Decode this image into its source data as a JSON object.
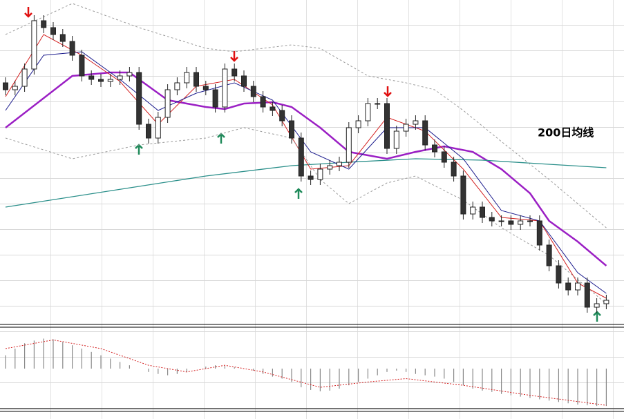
{
  "chart_data": [
    {
      "type": "candlestick",
      "annotation": "200日均线",
      "ylim": [
        0,
        470
      ],
      "up_color": "#ffffff",
      "down_color": "#333333",
      "open": [
        350,
        340,
        345,
        370,
        440,
        430,
        420,
        410,
        390,
        360,
        355,
        352,
        355,
        360,
        365,
        290,
        270,
        300,
        340,
        350,
        365,
        345,
        340,
        315,
        370,
        360,
        345,
        330,
        315,
        310,
        295,
        270,
        215,
        210,
        225,
        230,
        235,
        285,
        295,
        320,
        320,
        255,
        280,
        290,
        295,
        260,
        250,
        235,
        215,
        160,
        170,
        155,
        150,
        150,
        145,
        150,
        150,
        115,
        85,
        60,
        50,
        60,
        25,
        30
      ],
      "high": [
        358,
        353,
        378,
        448,
        448,
        438,
        428,
        418,
        398,
        368,
        363,
        363,
        368,
        373,
        373,
        298,
        308,
        348,
        358,
        373,
        373,
        353,
        348,
        378,
        378,
        368,
        353,
        338,
        323,
        318,
        303,
        278,
        223,
        233,
        238,
        243,
        293,
        303,
        328,
        328,
        328,
        288,
        298,
        303,
        303,
        268,
        258,
        243,
        223,
        178,
        178,
        163,
        158,
        158,
        158,
        158,
        158,
        123,
        93,
        68,
        68,
        68,
        38,
        43
      ],
      "low": [
        332,
        332,
        337,
        362,
        422,
        412,
        402,
        382,
        352,
        347,
        344,
        344,
        347,
        352,
        282,
        262,
        262,
        292,
        332,
        342,
        337,
        332,
        307,
        307,
        352,
        337,
        322,
        307,
        302,
        287,
        262,
        207,
        202,
        202,
        217,
        222,
        227,
        277,
        287,
        312,
        247,
        247,
        272,
        282,
        252,
        242,
        227,
        207,
        152,
        152,
        147,
        142,
        142,
        137,
        137,
        142,
        107,
        77,
        52,
        42,
        42,
        17,
        17,
        22
      ],
      "close": [
        340,
        345,
        370,
        440,
        430,
        420,
        410,
        390,
        360,
        355,
        352,
        355,
        360,
        365,
        290,
        270,
        300,
        340,
        350,
        365,
        345,
        340,
        315,
        370,
        360,
        345,
        330,
        315,
        310,
        295,
        270,
        215,
        210,
        225,
        230,
        235,
        285,
        295,
        320,
        320,
        255,
        280,
        290,
        295,
        260,
        250,
        235,
        215,
        160,
        170,
        155,
        150,
        150,
        145,
        150,
        150,
        115,
        85,
        60,
        50,
        60,
        25,
        30,
        35
      ],
      "lines": [
        {
          "color": "#9b1fc4",
          "width": 2.5,
          "x": [
            0,
            7,
            11,
            13,
            17,
            21,
            23,
            25,
            28,
            30,
            33,
            36,
            40,
            43,
            46,
            49,
            52,
            55,
            57,
            60,
            63
          ],
          "values": [
            285,
            360,
            365,
            365,
            325,
            315,
            312,
            320,
            322,
            315,
            285,
            250,
            240,
            250,
            258,
            250,
            225,
            190,
            150,
            120,
            85
          ]
        },
        {
          "color": "#2a8f8a",
          "width": 1.3,
          "x": [
            0,
            14,
            21,
            30,
            36,
            43,
            50,
            57,
            63
          ],
          "values": [
            170,
            200,
            215,
            230,
            235,
            240,
            238,
            232,
            227
          ]
        },
        {
          "color": "#d42020",
          "width": 1,
          "x": [
            0,
            4,
            8,
            12,
            16,
            20,
            24,
            28,
            32,
            36,
            40,
            44,
            48,
            52,
            56,
            60,
            63
          ],
          "values": [
            330,
            420,
            390,
            352,
            290,
            345,
            355,
            318,
            225,
            230,
            300,
            280,
            225,
            155,
            150,
            60,
            38
          ]
        },
        {
          "color": "#1a1a8c",
          "width": 1,
          "x": [
            0,
            4,
            8,
            12,
            16,
            20,
            24,
            28,
            32,
            36,
            40,
            44,
            48,
            52,
            56,
            60,
            63
          ],
          "values": [
            310,
            390,
            395,
            355,
            310,
            335,
            350,
            325,
            250,
            225,
            285,
            285,
            240,
            165,
            150,
            75,
            45
          ]
        },
        {
          "color": "#999999",
          "width": 1,
          "dash": "3 3",
          "x": [
            0,
            7,
            14,
            21,
            24,
            30,
            33,
            38,
            42,
            45,
            48,
            52,
            57,
            63
          ],
          "values": [
            420,
            465,
            430,
            400,
            395,
            405,
            400,
            360,
            350,
            340,
            310,
            265,
            210,
            140
          ]
        },
        {
          "color": "#999999",
          "width": 1,
          "dash": "3 3",
          "x": [
            0,
            7,
            14,
            21,
            25,
            30,
            33,
            36,
            40,
            43,
            48,
            52,
            57,
            63
          ],
          "values": [
            270,
            240,
            260,
            270,
            285,
            270,
            210,
            175,
            205,
            215,
            180,
            140,
            100,
            30
          ]
        }
      ]
    },
    {
      "type": "bar",
      "ylim": [
        -60,
        60
      ],
      "color": "#888888",
      "values": [
        20,
        30,
        38,
        42,
        45,
        44,
        40,
        35,
        30,
        25,
        20,
        15,
        10,
        5,
        0,
        -5,
        -8,
        -10,
        -8,
        -5,
        0,
        3,
        5,
        4,
        2,
        0,
        -3,
        -8,
        -12,
        -15,
        -20,
        -28,
        -32,
        -34,
        -33,
        -30,
        -25,
        -20,
        -15,
        -10,
        -5,
        -3,
        -5,
        -8,
        -10,
        -12,
        -15,
        -20,
        -25,
        -30,
        -33,
        -35,
        -38,
        -40,
        -42,
        -44,
        -46,
        -48,
        -50,
        -52,
        -54,
        -55,
        -56,
        -56
      ],
      "lines": [
        {
          "color": "#d42020",
          "width": 1,
          "dash": "2 2",
          "x": [
            0,
            5,
            10,
            15,
            19,
            23,
            27,
            33,
            38,
            42,
            48,
            55,
            63
          ],
          "values": [
            30,
            43,
            30,
            5,
            -5,
            5,
            -5,
            -28,
            -20,
            -15,
            -25,
            -40,
            -55
          ]
        }
      ]
    }
  ]
}
